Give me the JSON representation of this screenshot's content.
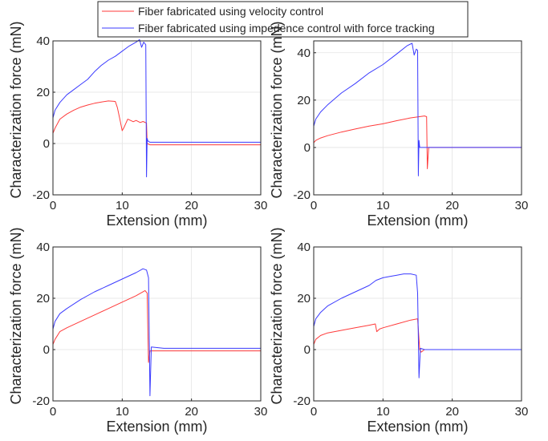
{
  "legend": {
    "items": [
      {
        "label": "Fiber fabricated using velocity control",
        "color": "#ff3b3b"
      },
      {
        "label": "Fiber fabricated using impedence control with force tracking",
        "color": "#3b3bff"
      }
    ]
  },
  "chart_data": [
    {
      "type": "line",
      "xlabel": "Extension (mm)",
      "ylabel": "Characterization force (mN)",
      "xlim": [
        0,
        30
      ],
      "ylim": [
        -20,
        40
      ],
      "xticks": [
        0,
        10,
        20,
        30
      ],
      "yticks": [
        -20,
        0,
        20,
        40
      ],
      "grid": true,
      "series": [
        {
          "name": "Fiber fabricated using velocity control",
          "color": "#ff3b3b",
          "x": [
            0,
            0.3,
            1,
            2,
            3,
            4,
            5,
            6,
            7,
            8,
            9,
            9.3,
            9.7,
            10.0,
            10.3,
            10.8,
            11.2,
            11.6,
            12.0,
            12.6,
            13.0,
            13.5,
            13.6,
            14,
            16,
            20,
            24,
            28,
            30
          ],
          "y": [
            4,
            6,
            9.5,
            11.5,
            13,
            14.2,
            15,
            15.7,
            16.2,
            16.6,
            16.4,
            14,
            9,
            5,
            6.5,
            9.5,
            9,
            8.5,
            9,
            8.2,
            8.6,
            8,
            0,
            -0.5,
            -0.5,
            -0.5,
            -0.5,
            -0.5,
            -0.5
          ]
        },
        {
          "name": "Fiber fabricated using impedence control with force tracking",
          "color": "#3b3bff",
          "x": [
            0,
            0.3,
            1,
            2,
            3,
            4,
            5,
            6,
            7,
            8,
            9,
            10,
            11,
            12,
            12.5,
            12.8,
            13.1,
            13.4,
            13.5,
            13.6,
            13.7,
            14,
            16,
            20,
            24,
            28,
            30
          ],
          "y": [
            10,
            13,
            16,
            19,
            21,
            23,
            25,
            28,
            30.5,
            32.5,
            34,
            36,
            38,
            39.5,
            40.5,
            37.5,
            39.5,
            38.5,
            -13,
            2,
            1,
            0.5,
            0.5,
            0.5,
            0.5,
            0.5,
            0.5
          ]
        }
      ]
    },
    {
      "type": "line",
      "xlabel": "Extension (mm)",
      "ylabel": "Characterization force (mN)",
      "xlim": [
        0,
        30
      ],
      "ylim": [
        -20,
        45
      ],
      "xticks": [
        0,
        10,
        20,
        30
      ],
      "yticks": [
        -20,
        0,
        20,
        40
      ],
      "grid": true,
      "series": [
        {
          "name": "Fiber fabricated using velocity control",
          "color": "#ff3b3b",
          "x": [
            0,
            0.3,
            1,
            2,
            4,
            6,
            8,
            10,
            12,
            14,
            16,
            16.3,
            16.4,
            16.6,
            17,
            20,
            24,
            28,
            30
          ],
          "y": [
            2,
            3,
            4,
            5,
            6.5,
            7.8,
            9,
            10,
            11.3,
            12.5,
            13.3,
            13,
            -9,
            0,
            0,
            0,
            0,
            0,
            0
          ]
        },
        {
          "name": "Fiber fabricated using impedence control with force tracking",
          "color": "#3b3bff",
          "x": [
            0,
            0.3,
            1,
            2,
            3,
            4,
            6,
            8,
            10,
            12,
            13.5,
            14.2,
            14.5,
            14.8,
            15.0,
            15.1,
            15.2,
            15.3,
            15.6,
            20,
            24,
            28,
            30
          ],
          "y": [
            9,
            12,
            15,
            18,
            20.5,
            23,
            27,
            31.5,
            35,
            39.5,
            43,
            44,
            39,
            41.5,
            41,
            -12,
            3,
            0,
            0,
            0,
            0,
            0,
            0
          ]
        }
      ]
    },
    {
      "type": "line",
      "xlabel": "Extension (mm)",
      "ylabel": "Characterization force (mN)",
      "xlim": [
        0,
        30
      ],
      "ylim": [
        -20,
        40
      ],
      "xticks": [
        0,
        10,
        20,
        30
      ],
      "yticks": [
        -20,
        0,
        20,
        40
      ],
      "grid": true,
      "series": [
        {
          "name": "Fiber fabricated using velocity control",
          "color": "#ff3b3b",
          "x": [
            0,
            0.3,
            1,
            2,
            4,
            6,
            8,
            10,
            12,
            13.3,
            13.6,
            13.8,
            14,
            16,
            20,
            24,
            28,
            30
          ],
          "y": [
            2,
            4,
            7,
            8.5,
            11,
            13.5,
            16,
            18.5,
            21,
            23,
            22,
            -5,
            -0.5,
            -0.5,
            -0.5,
            -0.5,
            -0.5,
            -0.5
          ]
        },
        {
          "name": "Fiber fabricated using impedence control with force tracking",
          "color": "#3b3bff",
          "x": [
            0,
            0.3,
            1,
            2,
            4,
            6,
            8,
            10,
            12,
            13.0,
            13.5,
            13.8,
            14.0,
            14.2,
            16,
            20,
            24,
            28,
            30
          ],
          "y": [
            8,
            11,
            14,
            16,
            19.5,
            22.5,
            25,
            27.5,
            30,
            31.5,
            31,
            28,
            -18,
            1,
            0.5,
            0.5,
            0.5,
            0.5,
            0.5
          ]
        }
      ]
    },
    {
      "type": "line",
      "xlabel": "Extension (mm)",
      "ylabel": "Characterization force (mN)",
      "xlim": [
        0,
        30
      ],
      "ylim": [
        -20,
        40
      ],
      "xticks": [
        0,
        10,
        20,
        30
      ],
      "yticks": [
        -20,
        0,
        20,
        40
      ],
      "grid": true,
      "series": [
        {
          "name": "Fiber fabricated using velocity control",
          "color": "#ff3b3b",
          "x": [
            0,
            0.3,
            1,
            2,
            4,
            6,
            8,
            8.9,
            9.1,
            9.5,
            10,
            12,
            14,
            15.0,
            15.3,
            15.5,
            16,
            20,
            24,
            28,
            30
          ],
          "y": [
            2,
            4,
            5.5,
            6.5,
            7.5,
            8.5,
            9.5,
            10,
            7,
            8,
            8.5,
            10,
            11.5,
            12,
            0,
            -1,
            0,
            0,
            0,
            0,
            0
          ]
        },
        {
          "name": "Fiber fabricated using impedence control with force tracking",
          "color": "#3b3bff",
          "x": [
            0,
            0.3,
            1,
            2,
            4,
            6,
            8,
            9,
            10,
            11,
            12,
            13,
            14,
            14.8,
            15.0,
            15.2,
            15.4,
            16,
            20,
            24,
            28,
            30
          ],
          "y": [
            9,
            12,
            14.5,
            17,
            20,
            22.5,
            25,
            27,
            28,
            28.5,
            29,
            29.5,
            29.5,
            29,
            22,
            -11,
            0.5,
            0,
            0,
            0,
            0,
            0
          ]
        }
      ]
    }
  ]
}
